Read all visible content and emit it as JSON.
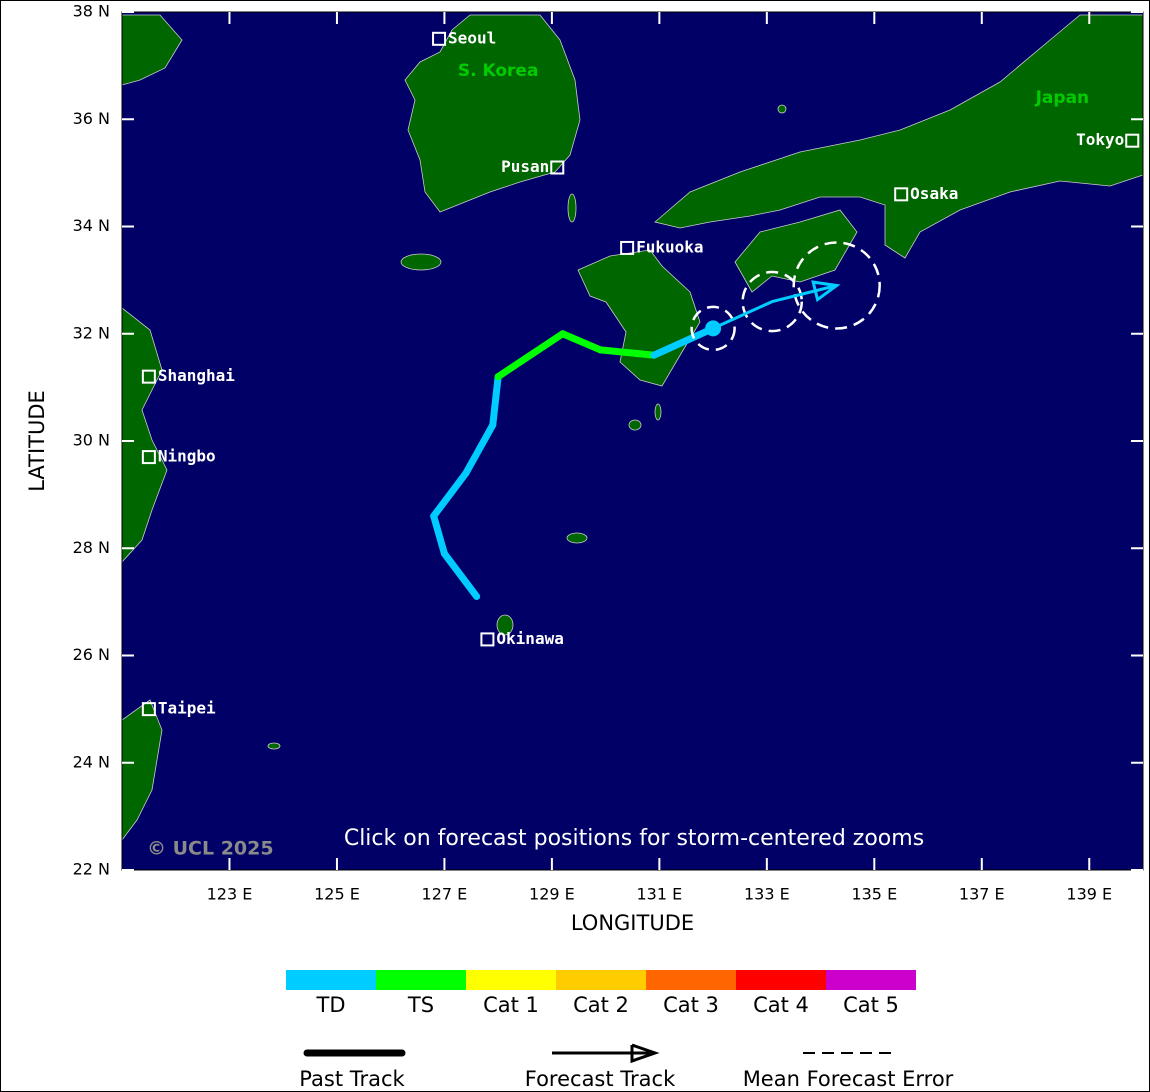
{
  "map": {
    "lonlim": [
      121,
      140
    ],
    "latlim": [
      22,
      38
    ],
    "lat_ticks": [
      {
        "value": 22,
        "label": "22 N"
      },
      {
        "value": 24,
        "label": "24 N"
      },
      {
        "value": 26,
        "label": "26 N"
      },
      {
        "value": 28,
        "label": "28 N"
      },
      {
        "value": 30,
        "label": "30 N"
      },
      {
        "value": 32,
        "label": "32 N"
      },
      {
        "value": 34,
        "label": "34 N"
      },
      {
        "value": 36,
        "label": "36 N"
      },
      {
        "value": 38,
        "label": "38 N"
      }
    ],
    "lon_ticks": [
      {
        "value": 123,
        "label": "123 E"
      },
      {
        "value": 125,
        "label": "125 E"
      },
      {
        "value": 127,
        "label": "127 E"
      },
      {
        "value": 129,
        "label": "129 E"
      },
      {
        "value": 131,
        "label": "131 E"
      },
      {
        "value": 133,
        "label": "133 E"
      },
      {
        "value": 135,
        "label": "135 E"
      },
      {
        "value": 137,
        "label": "137 E"
      },
      {
        "value": 139,
        "label": "139 E"
      }
    ],
    "x_label": "LONGITUDE",
    "y_label": "LATITUDE",
    "ocean_color": "#000066",
    "land_color": "#006600",
    "cities": [
      {
        "name": "Seoul",
        "lon": 126.9,
        "lat": 37.5
      },
      {
        "name": "Pusan",
        "lon": 129.1,
        "lat": 35.1
      },
      {
        "name": "Fukuoka",
        "lon": 130.4,
        "lat": 33.6
      },
      {
        "name": "Osaka",
        "lon": 135.5,
        "lat": 34.6
      },
      {
        "name": "Tokyo",
        "lon": 139.8,
        "lat": 35.6
      },
      {
        "name": "Shanghai",
        "lon": 121.5,
        "lat": 31.2
      },
      {
        "name": "Ningbo",
        "lon": 121.5,
        "lat": 29.7
      },
      {
        "name": "Okinawa",
        "lon": 127.8,
        "lat": 26.3
      },
      {
        "name": "Taipei",
        "lon": 121.5,
        "lat": 25.0
      }
    ],
    "regions": [
      {
        "name": "S. Korea",
        "lon": 128.0,
        "lat": 36.9
      },
      {
        "name": "Japan",
        "lon": 138.5,
        "lat": 36.4
      }
    ],
    "copyright": "© UCL 2025",
    "note": "Click on forecast positions for storm-centered zooms"
  },
  "storm": {
    "track": [
      {
        "lon": 127.6,
        "lat": 27.1,
        "cat": 0
      },
      {
        "lon": 127.0,
        "lat": 27.9,
        "cat": 0
      },
      {
        "lon": 126.8,
        "lat": 28.6,
        "cat": 0
      },
      {
        "lon": 127.4,
        "lat": 29.4,
        "cat": 0
      },
      {
        "lon": 127.9,
        "lat": 30.3,
        "cat": 0
      },
      {
        "lon": 128.0,
        "lat": 31.2,
        "cat": 0
      },
      {
        "lon": 129.2,
        "lat": 32.0,
        "cat": 1
      },
      {
        "lon": 129.9,
        "lat": 31.7,
        "cat": 1
      },
      {
        "lon": 130.9,
        "lat": 31.6,
        "cat": 1
      },
      {
        "lon": 132.0,
        "lat": 32.1,
        "cat": 0
      }
    ],
    "current_error_radius": 0.4,
    "forecast": [
      {
        "lon": 133.1,
        "lat": 32.6,
        "error_radius": 0.55
      },
      {
        "lon": 134.3,
        "lat": 32.9,
        "error_radius": 0.8
      }
    ]
  },
  "legend": {
    "categories": [
      {
        "name": "TD",
        "color": "#00ccff"
      },
      {
        "name": "TS",
        "color": "#00ff00"
      },
      {
        "name": "Cat 1",
        "color": "#ffff00"
      },
      {
        "name": "Cat 2",
        "color": "#ffcc00"
      },
      {
        "name": "Cat 3",
        "color": "#ff6600"
      },
      {
        "name": "Cat 4",
        "color": "#ff0000"
      },
      {
        "name": "Cat 5",
        "color": "#cc00cc"
      }
    ],
    "lines": [
      {
        "name": "Past Track"
      },
      {
        "name": "Forecast Track"
      },
      {
        "name": "Mean Forecast Error"
      }
    ]
  }
}
